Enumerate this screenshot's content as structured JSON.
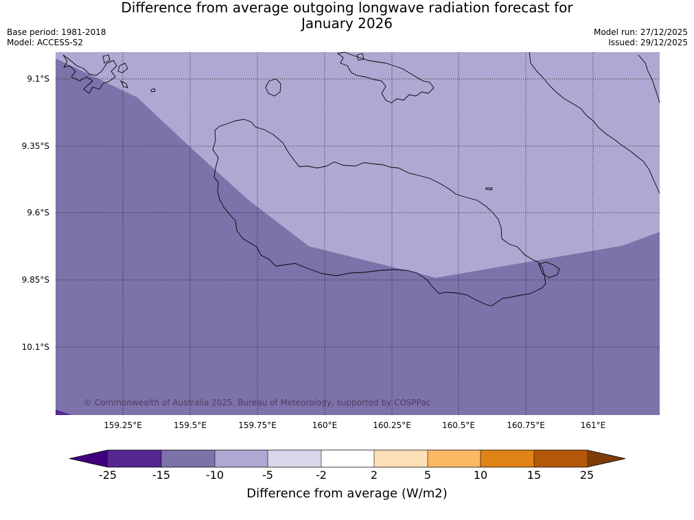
{
  "title": {
    "line1": "Difference from average outgoing longwave radiation forecast for",
    "line2": "January 2026"
  },
  "meta": {
    "base_period": "Base period: 1981-2018",
    "model": "Model: ACCESS-S2",
    "model_run": "Model run: 27/12/2025",
    "issued": "Issued: 29/12/2025"
  },
  "map": {
    "lat_labels": [
      "9.1°S",
      "9.35°S",
      "9.6°S",
      "9.85°S",
      "10.1°S"
    ],
    "lon_labels": [
      "159.25°E",
      "159.5°E",
      "159.75°E",
      "160°E",
      "160.25°E",
      "160.5°E",
      "160.75°E",
      "161°E"
    ],
    "copyright": "© Commonwealth of Australia 2025, Bureau of Meteorology, supported by COSPPac",
    "fill_colors": {
      "band_-15_-10": "#7e72ab",
      "band_-10_-5": "#b0a8d2",
      "band_-25_-15": "#54278f"
    }
  },
  "colorbar": {
    "ticks": [
      "-25",
      "-15",
      "-10",
      "-5",
      "-2",
      "2",
      "5",
      "10",
      "15",
      "25"
    ],
    "colors": [
      "#3f007d",
      "#54278f",
      "#7e72ab",
      "#b0a8d2",
      "#d9d8ea",
      "#ffffff",
      "#fee0b6",
      "#fdb863",
      "#e08214",
      "#b35806",
      "#7f3b08"
    ],
    "label": "Difference from average (W/m2)"
  }
}
